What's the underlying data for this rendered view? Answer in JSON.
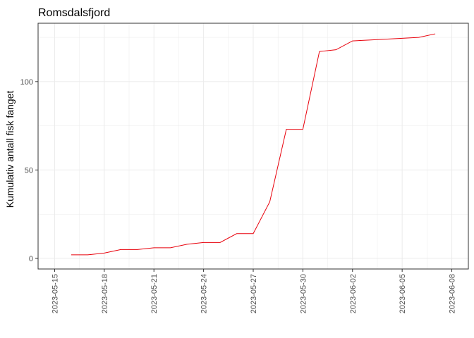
{
  "chart_data": {
    "type": "line",
    "title": "Romsdalsfjord",
    "xlabel": "",
    "ylabel": "Kumulativ antall fisk fanget",
    "x_tick_labels": [
      "2023-05-15",
      "2023-05-18",
      "2023-05-21",
      "2023-05-24",
      "2023-05-27",
      "2023-05-30",
      "2023-06-02",
      "2023-06-05",
      "2023-06-08"
    ],
    "y_tick_labels": [
      "0",
      "50",
      "100"
    ],
    "y_ticks": [
      0,
      50,
      100
    ],
    "xlim": [
      "2023-05-14",
      "2023-06-09"
    ],
    "ylim": [
      -6,
      133
    ],
    "grid": true,
    "series": [
      {
        "color": "#e8000b",
        "points": [
          {
            "x": "2023-05-16",
            "y": 2
          },
          {
            "x": "2023-05-17",
            "y": 2
          },
          {
            "x": "2023-05-18",
            "y": 3
          },
          {
            "x": "2023-05-19",
            "y": 5
          },
          {
            "x": "2023-05-20",
            "y": 5
          },
          {
            "x": "2023-05-21",
            "y": 6
          },
          {
            "x": "2023-05-22",
            "y": 6
          },
          {
            "x": "2023-05-23",
            "y": 8
          },
          {
            "x": "2023-05-24",
            "y": 9
          },
          {
            "x": "2023-05-25",
            "y": 9
          },
          {
            "x": "2023-05-26",
            "y": 14
          },
          {
            "x": "2023-05-27",
            "y": 14
          },
          {
            "x": "2023-05-28",
            "y": 32
          },
          {
            "x": "2023-05-29",
            "y": 73
          },
          {
            "x": "2023-05-30",
            "y": 73
          },
          {
            "x": "2023-05-31",
            "y": 117
          },
          {
            "x": "2023-06-01",
            "y": 118
          },
          {
            "x": "2023-06-02",
            "y": 123
          },
          {
            "x": "2023-06-03",
            "y": 123.5
          },
          {
            "x": "2023-06-04",
            "y": 124
          },
          {
            "x": "2023-06-05",
            "y": 124.5
          },
          {
            "x": "2023-06-06",
            "y": 125
          },
          {
            "x": "2023-06-07",
            "y": 127
          }
        ]
      }
    ]
  },
  "colors": {
    "line": "#e8000b",
    "grid": "#ebebeb",
    "panel_border": "#333333",
    "tick_label": "#4d4d4d"
  }
}
